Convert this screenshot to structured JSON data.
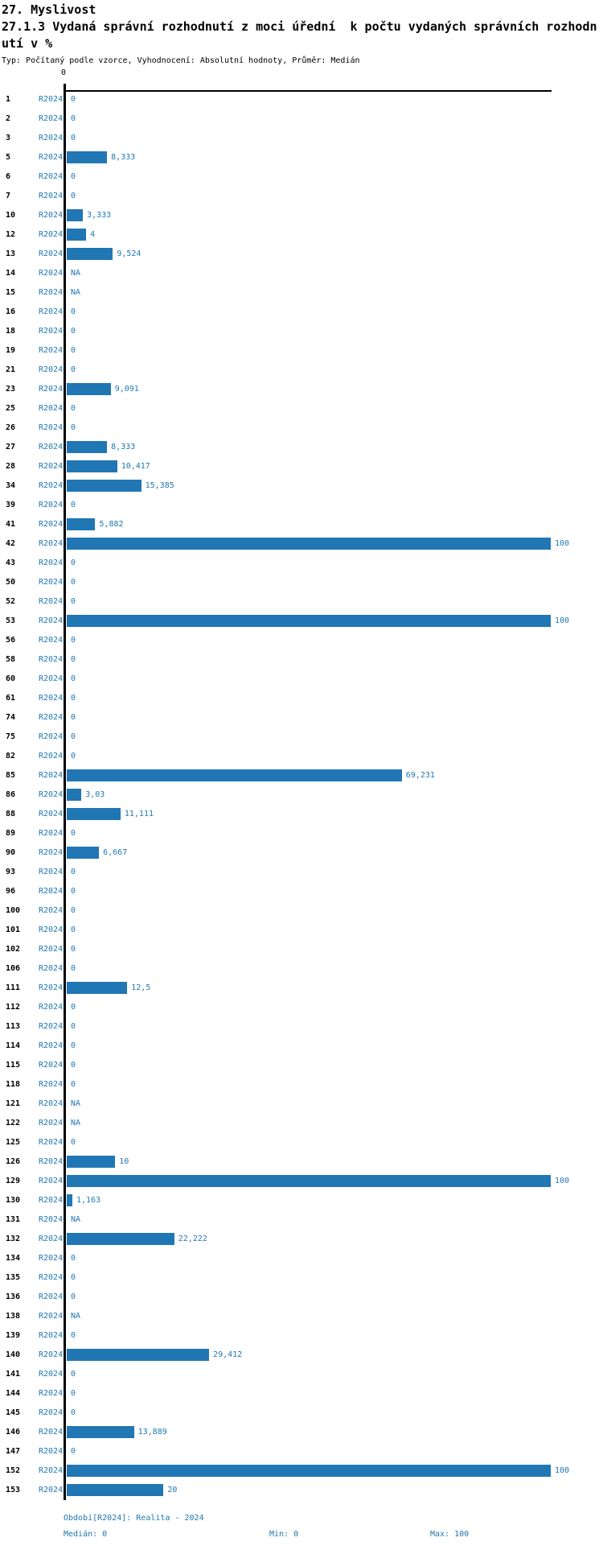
{
  "header": {
    "category": "27. Myslivost",
    "title": "27.1.3 Vydaná správní rozhodnutí z moci úřední  k počtu vydaných správních rozhodnutí v %",
    "meta": "Typ: Počítaný podle vzorce, Vyhodnocení: Absolutní hodnoty, Průměr: Medián"
  },
  "chart_data": {
    "type": "bar",
    "orientation": "horizontal",
    "title": "27.1.3 Vydaná správní rozhodnutí z moci úřední k počtu vydaných správních rozhodnutí v %",
    "xlabel": "",
    "ylabel": "",
    "xlim": [
      0,
      100
    ],
    "axis_tick_label": "0",
    "grid": false,
    "legend_position": "none",
    "bar_color": "#2176b4",
    "value_text_color": "#1f77b4",
    "series_name": "R2024",
    "na_text": "NA",
    "rows": [
      {
        "id": "1",
        "period": "R2024",
        "value": 0,
        "display": "0"
      },
      {
        "id": "2",
        "period": "R2024",
        "value": 0,
        "display": "0"
      },
      {
        "id": "3",
        "period": "R2024",
        "value": 0,
        "display": "0"
      },
      {
        "id": "5",
        "period": "R2024",
        "value": 8.333,
        "display": "8,333"
      },
      {
        "id": "6",
        "period": "R2024",
        "value": 0,
        "display": "0"
      },
      {
        "id": "7",
        "period": "R2024",
        "value": 0,
        "display": "0"
      },
      {
        "id": "10",
        "period": "R2024",
        "value": 3.333,
        "display": "3,333"
      },
      {
        "id": "12",
        "period": "R2024",
        "value": 4,
        "display": "4"
      },
      {
        "id": "13",
        "period": "R2024",
        "value": 9.524,
        "display": "9,524"
      },
      {
        "id": "14",
        "period": "R2024",
        "value": null,
        "display": "NA"
      },
      {
        "id": "15",
        "period": "R2024",
        "value": null,
        "display": "NA"
      },
      {
        "id": "16",
        "period": "R2024",
        "value": 0,
        "display": "0"
      },
      {
        "id": "18",
        "period": "R2024",
        "value": 0,
        "display": "0"
      },
      {
        "id": "19",
        "period": "R2024",
        "value": 0,
        "display": "0"
      },
      {
        "id": "21",
        "period": "R2024",
        "value": 0,
        "display": "0"
      },
      {
        "id": "23",
        "period": "R2024",
        "value": 9.091,
        "display": "9,091"
      },
      {
        "id": "25",
        "period": "R2024",
        "value": 0,
        "display": "0"
      },
      {
        "id": "26",
        "period": "R2024",
        "value": 0,
        "display": "0"
      },
      {
        "id": "27",
        "period": "R2024",
        "value": 8.333,
        "display": "8,333"
      },
      {
        "id": "28",
        "period": "R2024",
        "value": 10.417,
        "display": "10,417"
      },
      {
        "id": "34",
        "period": "R2024",
        "value": 15.385,
        "display": "15,385"
      },
      {
        "id": "39",
        "period": "R2024",
        "value": 0,
        "display": "0"
      },
      {
        "id": "41",
        "period": "R2024",
        "value": 5.882,
        "display": "5,882"
      },
      {
        "id": "42",
        "period": "R2024",
        "value": 100,
        "display": "100"
      },
      {
        "id": "43",
        "period": "R2024",
        "value": 0,
        "display": "0"
      },
      {
        "id": "50",
        "period": "R2024",
        "value": 0,
        "display": "0"
      },
      {
        "id": "52",
        "period": "R2024",
        "value": 0,
        "display": "0"
      },
      {
        "id": "53",
        "period": "R2024",
        "value": 100,
        "display": "100"
      },
      {
        "id": "56",
        "period": "R2024",
        "value": 0,
        "display": "0"
      },
      {
        "id": "58",
        "period": "R2024",
        "value": 0,
        "display": "0"
      },
      {
        "id": "60",
        "period": "R2024",
        "value": 0,
        "display": "0"
      },
      {
        "id": "61",
        "period": "R2024",
        "value": 0,
        "display": "0"
      },
      {
        "id": "74",
        "period": "R2024",
        "value": 0,
        "display": "0"
      },
      {
        "id": "75",
        "period": "R2024",
        "value": 0,
        "display": "0"
      },
      {
        "id": "82",
        "period": "R2024",
        "value": 0,
        "display": "0"
      },
      {
        "id": "85",
        "period": "R2024",
        "value": 69.231,
        "display": "69,231"
      },
      {
        "id": "86",
        "period": "R2024",
        "value": 3.03,
        "display": "3,03"
      },
      {
        "id": "88",
        "period": "R2024",
        "value": 11.111,
        "display": "11,111"
      },
      {
        "id": "89",
        "period": "R2024",
        "value": 0,
        "display": "0"
      },
      {
        "id": "90",
        "period": "R2024",
        "value": 6.667,
        "display": "6,667"
      },
      {
        "id": "93",
        "period": "R2024",
        "value": 0,
        "display": "0"
      },
      {
        "id": "96",
        "period": "R2024",
        "value": 0,
        "display": "0"
      },
      {
        "id": "100",
        "period": "R2024",
        "value": 0,
        "display": "0"
      },
      {
        "id": "101",
        "period": "R2024",
        "value": 0,
        "display": "0"
      },
      {
        "id": "102",
        "period": "R2024",
        "value": 0,
        "display": "0"
      },
      {
        "id": "106",
        "period": "R2024",
        "value": 0,
        "display": "0"
      },
      {
        "id": "111",
        "period": "R2024",
        "value": 12.5,
        "display": "12,5"
      },
      {
        "id": "112",
        "period": "R2024",
        "value": 0,
        "display": "0"
      },
      {
        "id": "113",
        "period": "R2024",
        "value": 0,
        "display": "0"
      },
      {
        "id": "114",
        "period": "R2024",
        "value": 0,
        "display": "0"
      },
      {
        "id": "115",
        "period": "R2024",
        "value": 0,
        "display": "0"
      },
      {
        "id": "118",
        "period": "R2024",
        "value": 0,
        "display": "0"
      },
      {
        "id": "121",
        "period": "R2024",
        "value": null,
        "display": "NA"
      },
      {
        "id": "122",
        "period": "R2024",
        "value": null,
        "display": "NA"
      },
      {
        "id": "125",
        "period": "R2024",
        "value": 0,
        "display": "0"
      },
      {
        "id": "126",
        "period": "R2024",
        "value": 10,
        "display": "10"
      },
      {
        "id": "129",
        "period": "R2024",
        "value": 100,
        "display": "100"
      },
      {
        "id": "130",
        "period": "R2024",
        "value": 1.163,
        "display": "1,163"
      },
      {
        "id": "131",
        "period": "R2024",
        "value": null,
        "display": "NA"
      },
      {
        "id": "132",
        "period": "R2024",
        "value": 22.222,
        "display": "22,222"
      },
      {
        "id": "134",
        "period": "R2024",
        "value": 0,
        "display": "0"
      },
      {
        "id": "135",
        "period": "R2024",
        "value": 0,
        "display": "0"
      },
      {
        "id": "136",
        "period": "R2024",
        "value": 0,
        "display": "0"
      },
      {
        "id": "138",
        "period": "R2024",
        "value": null,
        "display": "NA"
      },
      {
        "id": "139",
        "period": "R2024",
        "value": 0,
        "display": "0"
      },
      {
        "id": "140",
        "period": "R2024",
        "value": 29.412,
        "display": "29,412"
      },
      {
        "id": "141",
        "period": "R2024",
        "value": 0,
        "display": "0"
      },
      {
        "id": "144",
        "period": "R2024",
        "value": 0,
        "display": "0"
      },
      {
        "id": "145",
        "period": "R2024",
        "value": 0,
        "display": "0"
      },
      {
        "id": "146",
        "period": "R2024",
        "value": 13.889,
        "display": "13,889"
      },
      {
        "id": "147",
        "period": "R2024",
        "value": 0,
        "display": "0"
      },
      {
        "id": "152",
        "period": "R2024",
        "value": 100,
        "display": "100"
      },
      {
        "id": "153",
        "period": "R2024",
        "value": 20,
        "display": "20"
      }
    ]
  },
  "footer": {
    "period": "Období[R2024]: Realita - 2024",
    "median": "Medián: 0",
    "min": "Min: 0",
    "max": "Max: 100"
  }
}
